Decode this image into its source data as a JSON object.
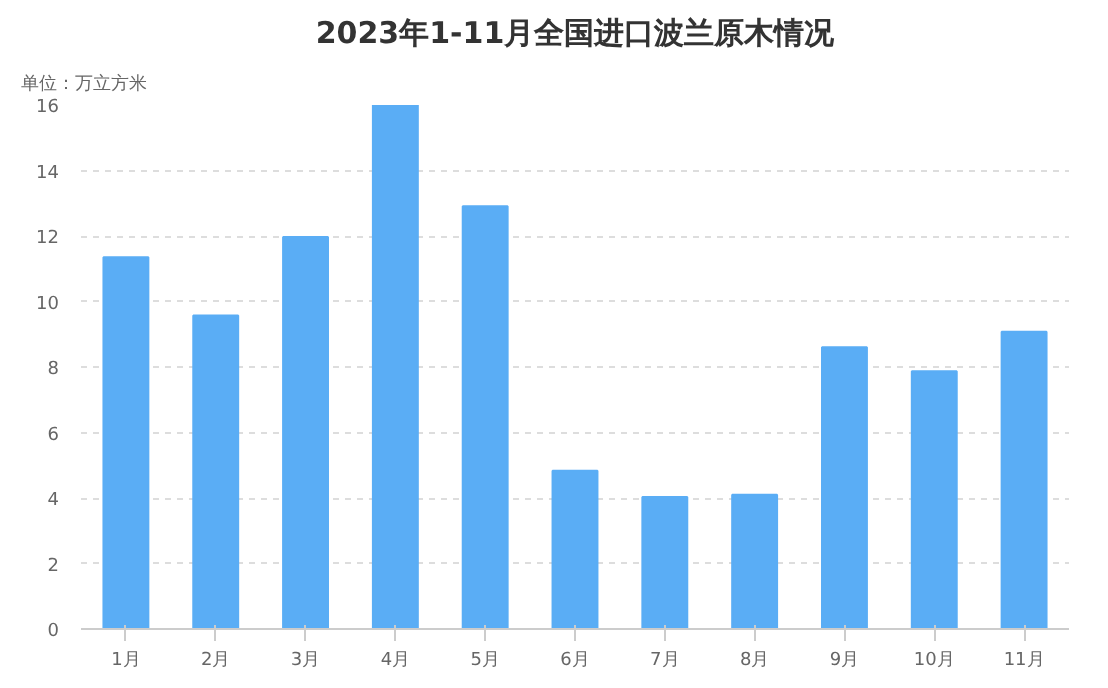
{
  "chart_data": {
    "type": "bar",
    "title": "2023年1-11月全国进口波兰原木情况",
    "subtitle": "单位：万立方米",
    "categories": [
      "1月",
      "2月",
      "3月",
      "4月",
      "5月",
      "6月",
      "7月",
      "8月",
      "9月",
      "10月",
      "11月"
    ],
    "values": [
      11.35,
      9.57,
      11.97,
      16,
      12.91,
      4.83,
      4.03,
      4.1,
      8.6,
      7.87,
      9.08
    ],
    "color": "#5aadf5",
    "ylim": [
      0,
      16
    ],
    "yticks": [
      0,
      2,
      4,
      6,
      8,
      10,
      12,
      14,
      16
    ],
    "grid": "y"
  }
}
